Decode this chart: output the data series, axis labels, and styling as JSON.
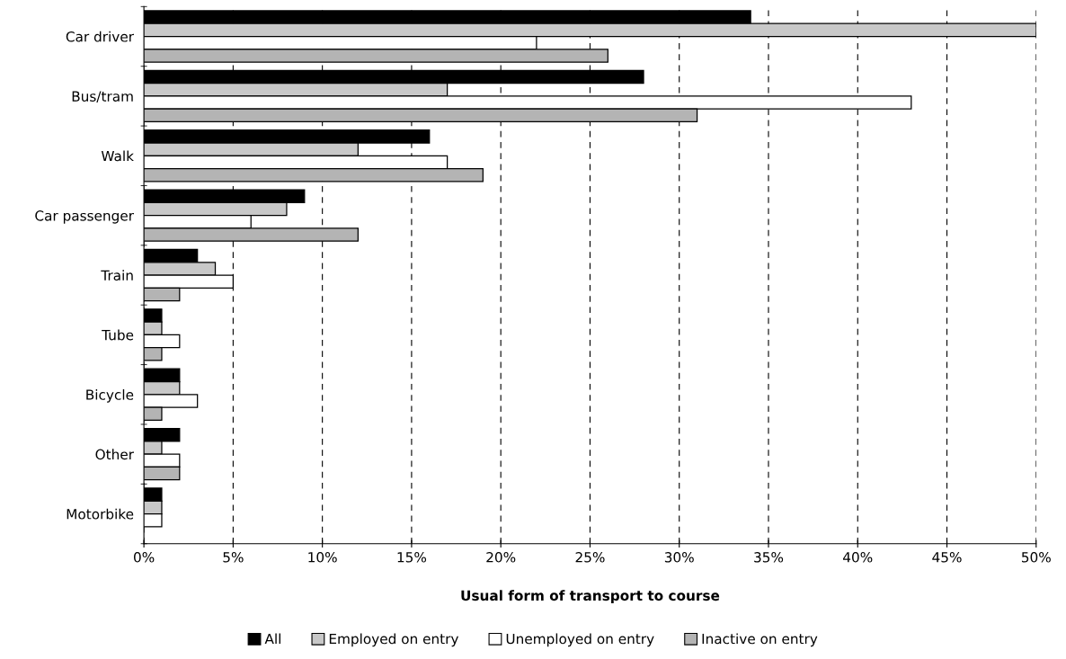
{
  "chart_data": {
    "type": "bar",
    "orientation": "horizontal",
    "xlabel": "Usual form of transport to course",
    "categories": [
      "Car driver",
      "Bus/tram",
      "Walk",
      "Car passenger",
      "Train",
      "Tube",
      "Bicycle",
      "Other",
      "Motorbike"
    ],
    "series": [
      {
        "name": "All",
        "color": "#000000",
        "values": [
          34,
          28,
          16,
          9,
          3,
          1,
          2,
          2,
          1
        ]
      },
      {
        "name": "Employed on entry",
        "color": "#c8c8c8",
        "values": [
          50,
          17,
          12,
          8,
          4,
          1,
          2,
          1,
          1
        ]
      },
      {
        "name": "Unemployed on entry",
        "color": "#ffffff",
        "values": [
          22,
          43,
          17,
          6,
          5,
          2,
          3,
          2,
          1
        ]
      },
      {
        "name": "Inactive on entry",
        "color": "#b4b4b4",
        "values": [
          26,
          31,
          19,
          12,
          2,
          1,
          1,
          2,
          null
        ]
      }
    ],
    "xlim": [
      0,
      50
    ],
    "xticks": [
      {
        "value": 0,
        "label": "0%"
      },
      {
        "value": 5,
        "label": "5%"
      },
      {
        "value": 10,
        "label": "10%"
      },
      {
        "value": 15,
        "label": "15%"
      },
      {
        "value": 20,
        "label": "20%"
      },
      {
        "value": 25,
        "label": "25%"
      },
      {
        "value": 30,
        "label": "30%"
      },
      {
        "value": 35,
        "label": "35%"
      },
      {
        "value": 40,
        "label": "40%"
      },
      {
        "value": 45,
        "label": "45%"
      },
      {
        "value": 50,
        "label": "50%"
      }
    ],
    "grid": "x",
    "legend": "bottom"
  }
}
